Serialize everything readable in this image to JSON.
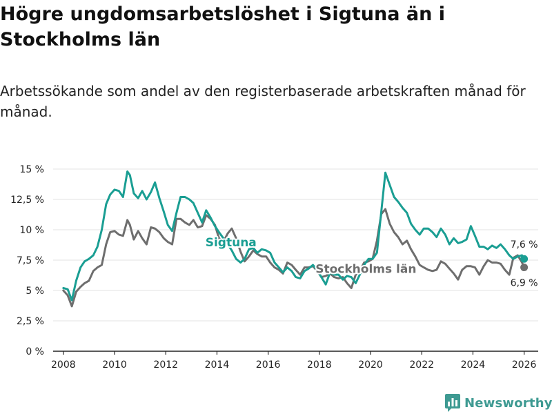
{
  "title": "Högre ungdomsarbetslöshet i Sigtuna än i Stockholms län",
  "subtitle": "Arbetssökande som andel av den registerbaserade arbetskraften månad för månad.",
  "brand": "Newsworthy",
  "colors": {
    "sigtuna": "#1a9e93",
    "stockholm": "#6e6e6e",
    "grid": "#e3e3e3",
    "axis": "#222222",
    "brand": "#3e9a92"
  },
  "chart_data": {
    "type": "line",
    "title": "Högre ungdomsarbetslöshet i Sigtuna än i Stockholms län",
    "xlabel": "",
    "ylabel": "",
    "xlim": [
      2007.6,
      2026.55
    ],
    "ylim": [
      0,
      15
    ],
    "yticks": [
      0,
      2.5,
      5,
      7.5,
      10,
      12.5,
      15
    ],
    "ytick_labels": [
      "0 %",
      "2,5 %",
      "5 %",
      "7,5 %",
      "10 %",
      "12,5 %",
      "15 %"
    ],
    "xticks": [
      2008,
      2010,
      2012,
      2014,
      2016,
      2018,
      2020,
      2022,
      2024,
      2026
    ],
    "xtick_labels": [
      "2008",
      "2010",
      "2012",
      "2014",
      "2016",
      "2018",
      "2020",
      "2022",
      "2024",
      "2026"
    ],
    "series": [
      {
        "name": "Sigtuna",
        "label": "Sigtuna",
        "end_label": "7,6 %",
        "last_value": 7.6,
        "x": [
          2008.0,
          2008.17,
          2008.33,
          2008.5,
          2008.67,
          2008.83,
          2009.0,
          2009.17,
          2009.33,
          2009.5,
          2009.67,
          2009.83,
          2010.0,
          2010.17,
          2010.33,
          2010.5,
          2010.6,
          2010.75,
          2010.92,
          2011.08,
          2011.25,
          2011.42,
          2011.58,
          2011.75,
          2011.92,
          2012.08,
          2012.25,
          2012.42,
          2012.58,
          2012.75,
          2012.92,
          2013.08,
          2013.25,
          2013.42,
          2013.58,
          2013.75,
          2013.92,
          2014.08,
          2014.25,
          2014.42,
          2014.58,
          2014.75,
          2014.92,
          2015.08,
          2015.25,
          2015.42,
          2015.58,
          2015.75,
          2015.92,
          2016.08,
          2016.25,
          2016.42,
          2016.58,
          2016.75,
          2016.92,
          2017.08,
          2017.25,
          2017.42,
          2017.58,
          2017.75,
          2017.92,
          2018.08,
          2018.25,
          2018.42,
          2018.58,
          2018.75,
          2018.92,
          2019.08,
          2019.25,
          2019.42,
          2019.58,
          2019.75,
          2019.92,
          2020.08,
          2020.25,
          2020.42,
          2020.58,
          2020.75,
          2020.92,
          2021.08,
          2021.25,
          2021.42,
          2021.58,
          2021.75,
          2021.92,
          2022.08,
          2022.25,
          2022.42,
          2022.58,
          2022.75,
          2022.92,
          2023.08,
          2023.25,
          2023.42,
          2023.58,
          2023.75,
          2023.92,
          2024.08,
          2024.25,
          2024.42,
          2024.58,
          2024.75,
          2024.92,
          2025.08,
          2025.25,
          2025.42,
          2025.58,
          2025.75,
          2025.92,
          2026.0
        ],
        "values": [
          5.2,
          5.1,
          4.2,
          5.8,
          6.9,
          7.4,
          7.6,
          7.9,
          8.6,
          10.0,
          12.1,
          12.9,
          13.3,
          13.2,
          12.7,
          14.8,
          14.5,
          13.0,
          12.6,
          13.2,
          12.5,
          13.1,
          13.9,
          12.6,
          11.5,
          10.4,
          9.9,
          11.4,
          12.7,
          12.7,
          12.5,
          12.2,
          11.4,
          10.6,
          11.6,
          11.0,
          10.3,
          9.8,
          9.3,
          8.8,
          8.3,
          7.6,
          7.3,
          7.6,
          8.4,
          8.5,
          8.1,
          8.4,
          8.3,
          8.1,
          7.3,
          6.9,
          6.5,
          6.9,
          6.6,
          6.1,
          6.0,
          6.6,
          6.8,
          7.1,
          6.7,
          6.1,
          5.5,
          6.5,
          6.3,
          6.3,
          5.9,
          6.2,
          6.1,
          5.6,
          6.3,
          7.1,
          7.6,
          7.6,
          8.1,
          11.5,
          14.7,
          13.7,
          12.7,
          12.3,
          11.8,
          11.4,
          10.5,
          10.0,
          9.6,
          10.1,
          10.1,
          9.8,
          9.4,
          10.1,
          9.6,
          8.8,
          9.3,
          8.9,
          9.0,
          9.2,
          10.3,
          9.5,
          8.6,
          8.6,
          8.4,
          8.7,
          8.5,
          8.8,
          8.4,
          7.9,
          7.6,
          7.8,
          7.9,
          7.6
        ]
      },
      {
        "name": "Stockholms län",
        "label": "Stockholms län",
        "end_label": "6,9 %",
        "last_value": 6.9,
        "x": [
          2008.0,
          2008.17,
          2008.33,
          2008.5,
          2008.67,
          2008.83,
          2009.0,
          2009.17,
          2009.33,
          2009.5,
          2009.67,
          2009.83,
          2010.0,
          2010.17,
          2010.33,
          2010.5,
          2010.6,
          2010.75,
          2010.92,
          2011.08,
          2011.25,
          2011.42,
          2011.58,
          2011.75,
          2011.92,
          2012.08,
          2012.25,
          2012.42,
          2012.58,
          2012.75,
          2012.92,
          2013.08,
          2013.25,
          2013.42,
          2013.58,
          2013.75,
          2013.92,
          2014.08,
          2014.25,
          2014.42,
          2014.58,
          2014.75,
          2014.92,
          2015.08,
          2015.25,
          2015.42,
          2015.58,
          2015.75,
          2015.92,
          2016.08,
          2016.25,
          2016.42,
          2016.58,
          2016.75,
          2016.92,
          2017.08,
          2017.25,
          2017.42,
          2017.58,
          2017.75,
          2017.92,
          2018.08,
          2018.25,
          2018.42,
          2018.58,
          2018.75,
          2018.92,
          2019.08,
          2019.25,
          2019.42,
          2019.58,
          2019.75,
          2019.92,
          2020.08,
          2020.25,
          2020.42,
          2020.58,
          2020.75,
          2020.92,
          2021.08,
          2021.25,
          2021.42,
          2021.58,
          2021.75,
          2021.92,
          2022.08,
          2022.25,
          2022.42,
          2022.58,
          2022.75,
          2022.92,
          2023.08,
          2023.25,
          2023.42,
          2023.58,
          2023.75,
          2023.92,
          2024.08,
          2024.25,
          2024.42,
          2024.58,
          2024.75,
          2024.92,
          2025.08,
          2025.25,
          2025.42,
          2025.58,
          2025.75,
          2025.92,
          2026.0
        ],
        "values": [
          5.0,
          4.6,
          3.7,
          4.9,
          5.3,
          5.6,
          5.8,
          6.6,
          6.9,
          7.1,
          8.8,
          9.8,
          9.9,
          9.6,
          9.5,
          10.8,
          10.4,
          9.2,
          9.9,
          9.3,
          8.8,
          10.2,
          10.1,
          9.8,
          9.3,
          9.0,
          8.8,
          10.9,
          10.9,
          10.6,
          10.4,
          10.8,
          10.2,
          10.3,
          11.2,
          10.9,
          10.4,
          9.3,
          9.0,
          9.7,
          10.1,
          9.3,
          8.2,
          7.4,
          7.8,
          8.3,
          8.0,
          7.8,
          7.8,
          7.3,
          6.9,
          6.7,
          6.4,
          7.3,
          7.1,
          6.7,
          6.3,
          6.9,
          6.9,
          7.0,
          6.6,
          6.1,
          6.2,
          6.4,
          6.1,
          6.0,
          6.1,
          5.6,
          5.2,
          6.3,
          6.6,
          7.3,
          7.4,
          7.6,
          9.1,
          11.3,
          11.7,
          10.5,
          9.8,
          9.4,
          8.8,
          9.1,
          8.4,
          7.8,
          7.1,
          6.9,
          6.7,
          6.6,
          6.7,
          7.4,
          7.2,
          6.8,
          6.4,
          5.9,
          6.7,
          7.0,
          7.0,
          6.9,
          6.3,
          7.0,
          7.5,
          7.3,
          7.3,
          7.2,
          6.7,
          6.3,
          7.7,
          7.9,
          7.3,
          6.9
        ]
      }
    ]
  }
}
